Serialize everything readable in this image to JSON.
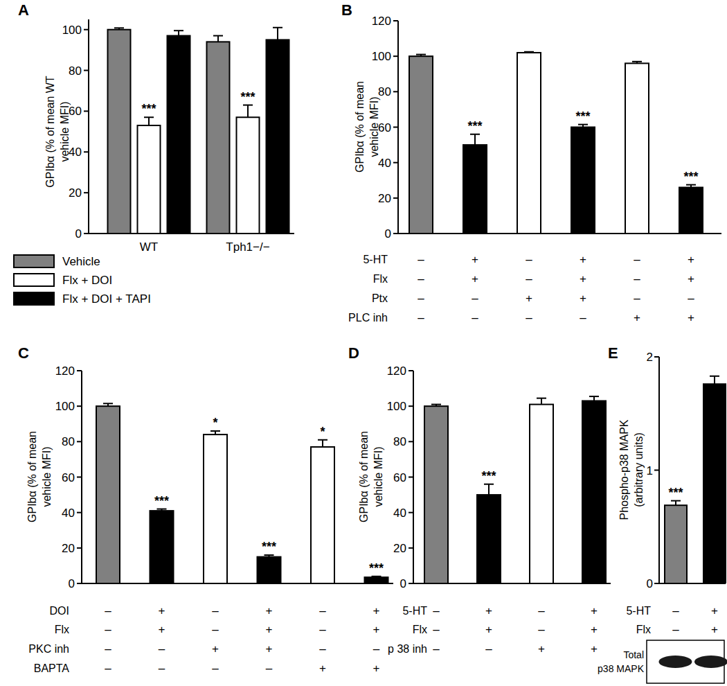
{
  "chart_data": [
    {
      "type": "bar",
      "title": "A",
      "y_label": [
        "GPIbα (% of mean WT",
        "vehicle MFI)"
      ],
      "categories": [
        "WT",
        "Tph1−/−"
      ],
      "series": [
        {
          "name": "Vehicle",
          "color": "#808080",
          "values": [
            100,
            94
          ],
          "errors": [
            0.8,
            3
          ],
          "annotations": [
            null,
            null
          ]
        },
        {
          "name": "Flx + DOI",
          "color": "#ffffff",
          "values": [
            53,
            57
          ],
          "errors": [
            4,
            6
          ],
          "annotations": [
            "***",
            "***"
          ]
        },
        {
          "name": "Flx + DOI + TAPI",
          "color": "#000000",
          "values": [
            97,
            95
          ],
          "errors": [
            2.5,
            6
          ],
          "annotations": [
            null,
            null
          ]
        }
      ],
      "ylim": [
        0,
        105
      ],
      "yticks": [
        0,
        20,
        40,
        60,
        80,
        100
      ],
      "legend": "bottom"
    },
    {
      "type": "bar",
      "title": "B",
      "y_label": [
        "GPIbα (% of mean",
        "vehicle MFI)"
      ],
      "categories": [
        null,
        null,
        null,
        null,
        null,
        null
      ],
      "values": [
        100,
        50,
        102,
        60,
        96,
        26
      ],
      "errors": [
        1,
        6,
        0.5,
        1.5,
        1,
        1.5
      ],
      "annotations": [
        null,
        "***",
        null,
        "***",
        null,
        "***"
      ],
      "colors": [
        "#808080",
        "#000000",
        "#ffffff",
        "#000000",
        "#ffffff",
        "#000000"
      ],
      "conditions": [
        {
          "label": "5-HT",
          "values": [
            "–",
            "+",
            "–",
            "+",
            "–",
            "+"
          ]
        },
        {
          "label": "Flx",
          "values": [
            "–",
            "+",
            "–",
            "+",
            "–",
            "+"
          ]
        },
        {
          "label": "Ptx",
          "values": [
            "–",
            "–",
            "+",
            "+",
            "–",
            "–"
          ]
        },
        {
          "label": "PLC inh",
          "values": [
            "–",
            "–",
            "–",
            "–",
            "+",
            "+"
          ]
        }
      ],
      "ylim": [
        0,
        120
      ],
      "yticks": [
        0,
        20,
        40,
        60,
        80,
        100,
        120
      ]
    },
    {
      "type": "bar",
      "title": "C",
      "y_label": [
        "GPIbα (% of mean",
        "vehicle MFI)"
      ],
      "categories": [
        null,
        null,
        null,
        null,
        null,
        null
      ],
      "values": [
        100,
        41,
        84,
        15,
        77,
        3.5
      ],
      "errors": [
        1.5,
        1,
        2,
        1,
        4,
        0.5
      ],
      "annotations": [
        null,
        "***",
        "*",
        "***",
        "*",
        "***"
      ],
      "colors": [
        "#808080",
        "#000000",
        "#ffffff",
        "#000000",
        "#ffffff",
        "#000000"
      ],
      "conditions": [
        {
          "label": "DOI",
          "values": [
            "–",
            "+",
            "–",
            "+",
            "–",
            "+"
          ]
        },
        {
          "label": "Flx",
          "values": [
            "–",
            "+",
            "–",
            "+",
            "–",
            "+"
          ]
        },
        {
          "label": "PKC inh",
          "values": [
            "–",
            "–",
            "+",
            "+",
            "–",
            "–"
          ]
        },
        {
          "label": "BAPTA",
          "values": [
            "–",
            "–",
            "–",
            "–",
            "+",
            "+"
          ]
        }
      ],
      "ylim": [
        0,
        120
      ],
      "yticks": [
        0,
        20,
        40,
        60,
        80,
        100,
        120
      ]
    },
    {
      "type": "bar",
      "title": "D",
      "y_label": [
        "GPIbα (% of mean",
        "vehicle MFI)"
      ],
      "categories": [
        null,
        null,
        null,
        null
      ],
      "values": [
        100,
        50,
        101,
        103
      ],
      "errors": [
        1,
        6,
        3.5,
        2.5
      ],
      "annotations": [
        null,
        "***",
        null,
        null
      ],
      "colors": [
        "#808080",
        "#000000",
        "#ffffff",
        "#000000"
      ],
      "conditions": [
        {
          "label": "5-HT",
          "values": [
            "–",
            "+",
            "–",
            "+"
          ]
        },
        {
          "label": "Flx",
          "values": [
            "–",
            "+",
            "–",
            "+"
          ]
        },
        {
          "label": "p 38 inh",
          "values": [
            "–",
            "–",
            "+",
            "+"
          ]
        }
      ],
      "ylim": [
        0,
        120
      ],
      "yticks": [
        0,
        20,
        40,
        60,
        80,
        100,
        120
      ]
    },
    {
      "type": "bar",
      "title": "E",
      "y_label": [
        "Phospho-p38 MAPK",
        "(arbitrary units)"
      ],
      "categories": [
        null,
        null
      ],
      "values": [
        0.69,
        1.76
      ],
      "errors": [
        0.04,
        0.07
      ],
      "annotations": [
        "***",
        null
      ],
      "colors": [
        "#808080",
        "#000000"
      ],
      "conditions": [
        {
          "label": "5-HT",
          "values": [
            "–",
            "+"
          ]
        },
        {
          "label": "Flx",
          "values": [
            "–",
            "+"
          ]
        }
      ],
      "blot_label": [
        "Total",
        "p38 MAPK"
      ],
      "ylim": [
        0,
        2
      ],
      "yticks": [
        0,
        1,
        2
      ]
    }
  ]
}
